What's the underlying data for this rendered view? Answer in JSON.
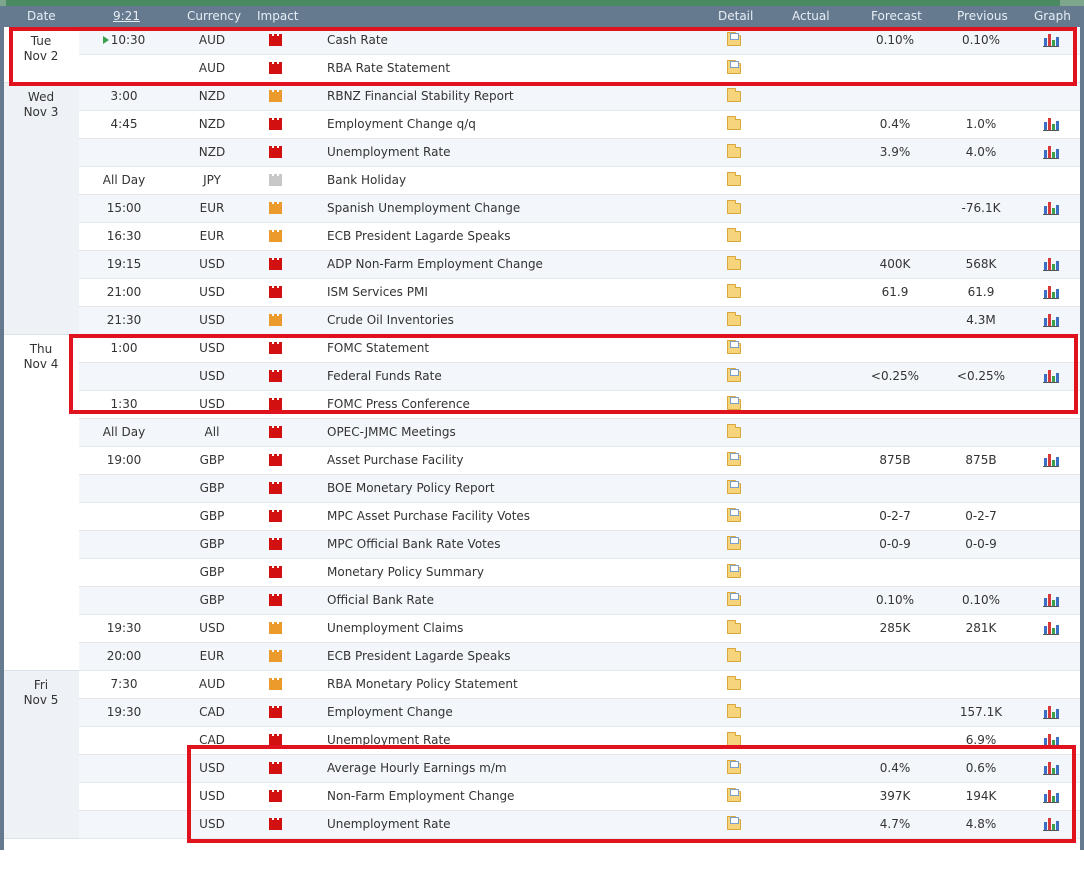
{
  "header": {
    "date": "Date",
    "time": "9:21",
    "currency": "Currency",
    "impact": "Impact",
    "detail": "Detail",
    "actual": "Actual",
    "forecast": "Forecast",
    "previous": "Previous",
    "graph": "Graph"
  },
  "days": [
    {
      "day": "Tue",
      "date": "Nov 2",
      "start": 0,
      "count": 2
    },
    {
      "day": "Wed",
      "date": "Nov 3",
      "start": 2,
      "count": 9
    },
    {
      "day": "Thu",
      "date": "Nov 4",
      "start": 11,
      "count": 12
    },
    {
      "day": "Fri",
      "date": "Nov 5",
      "start": 23,
      "count": 6
    }
  ],
  "rows": [
    {
      "time": "10:30",
      "upnext": true,
      "currency": "AUD",
      "impact": "high",
      "event": "Cash Rate",
      "detail": "doc",
      "actual": "",
      "forecast": "0.10%",
      "previous": "0.10%",
      "graph": true
    },
    {
      "time": "",
      "currency": "AUD",
      "impact": "high",
      "event": "RBA Rate Statement",
      "detail": "doc",
      "actual": "",
      "forecast": "",
      "previous": "",
      "graph": false
    },
    {
      "time": "3:00",
      "currency": "NZD",
      "impact": "med",
      "event": "RBNZ Financial Stability Report",
      "detail": "folder",
      "actual": "",
      "forecast": "",
      "previous": "",
      "graph": false
    },
    {
      "time": "4:45",
      "currency": "NZD",
      "impact": "high",
      "event": "Employment Change q/q",
      "detail": "folder",
      "actual": "",
      "forecast": "0.4%",
      "previous": "1.0%",
      "graph": true
    },
    {
      "time": "",
      "currency": "NZD",
      "impact": "high",
      "event": "Unemployment Rate",
      "detail": "folder",
      "actual": "",
      "forecast": "3.9%",
      "previous": "4.0%",
      "graph": true
    },
    {
      "time": "All Day",
      "currency": "JPY",
      "impact": "none",
      "event": "Bank Holiday",
      "detail": "folder",
      "actual": "",
      "forecast": "",
      "previous": "",
      "graph": false
    },
    {
      "time": "15:00",
      "currency": "EUR",
      "impact": "med",
      "event": "Spanish Unemployment Change",
      "detail": "folder",
      "actual": "",
      "forecast": "",
      "previous": "-76.1K",
      "graph": true
    },
    {
      "time": "16:30",
      "currency": "EUR",
      "impact": "med",
      "event": "ECB President Lagarde Speaks",
      "detail": "folder",
      "actual": "",
      "forecast": "",
      "previous": "",
      "graph": false
    },
    {
      "time": "19:15",
      "currency": "USD",
      "impact": "high",
      "event": "ADP Non-Farm Employment Change",
      "detail": "folder",
      "actual": "",
      "forecast": "400K",
      "previous": "568K",
      "graph": true
    },
    {
      "time": "21:00",
      "currency": "USD",
      "impact": "high",
      "event": "ISM Services PMI",
      "detail": "folder",
      "actual": "",
      "forecast": "61.9",
      "previous": "61.9",
      "graph": true
    },
    {
      "time": "21:30",
      "currency": "USD",
      "impact": "med",
      "event": "Crude Oil Inventories",
      "detail": "folder",
      "actual": "",
      "forecast": "",
      "previous": "4.3M",
      "graph": true
    },
    {
      "time": "1:00",
      "currency": "USD",
      "impact": "high",
      "event": "FOMC Statement",
      "detail": "doc",
      "actual": "",
      "forecast": "",
      "previous": "",
      "graph": false
    },
    {
      "time": "",
      "currency": "USD",
      "impact": "high",
      "event": "Federal Funds Rate",
      "detail": "doc",
      "actual": "",
      "forecast": "<0.25%",
      "previous": "<0.25%",
      "graph": true
    },
    {
      "time": "1:30",
      "currency": "USD",
      "impact": "high",
      "event": "FOMC Press Conference",
      "detail": "doc",
      "actual": "",
      "forecast": "",
      "previous": "",
      "graph": false
    },
    {
      "time": "All Day",
      "currency": "All",
      "impact": "high",
      "event": "OPEC-JMMC Meetings",
      "detail": "folder",
      "actual": "",
      "forecast": "",
      "previous": "",
      "graph": false
    },
    {
      "time": "19:00",
      "currency": "GBP",
      "impact": "high",
      "event": "Asset Purchase Facility",
      "detail": "doc",
      "actual": "",
      "forecast": "875B",
      "previous": "875B",
      "graph": true
    },
    {
      "time": "",
      "currency": "GBP",
      "impact": "high",
      "event": "BOE Monetary Policy Report",
      "detail": "doc",
      "actual": "",
      "forecast": "",
      "previous": "",
      "graph": false
    },
    {
      "time": "",
      "currency": "GBP",
      "impact": "high",
      "event": "MPC Asset Purchase Facility Votes",
      "detail": "doc",
      "actual": "",
      "forecast": "0-2-7",
      "previous": "0-2-7",
      "graph": false
    },
    {
      "time": "",
      "currency": "GBP",
      "impact": "high",
      "event": "MPC Official Bank Rate Votes",
      "detail": "doc",
      "actual": "",
      "forecast": "0-0-9",
      "previous": "0-0-9",
      "graph": false
    },
    {
      "time": "",
      "currency": "GBP",
      "impact": "high",
      "event": "Monetary Policy Summary",
      "detail": "doc",
      "actual": "",
      "forecast": "",
      "previous": "",
      "graph": false
    },
    {
      "time": "",
      "currency": "GBP",
      "impact": "high",
      "event": "Official Bank Rate",
      "detail": "doc",
      "actual": "",
      "forecast": "0.10%",
      "previous": "0.10%",
      "graph": true
    },
    {
      "time": "19:30",
      "currency": "USD",
      "impact": "med",
      "event": "Unemployment Claims",
      "detail": "folder",
      "actual": "",
      "forecast": "285K",
      "previous": "281K",
      "graph": true
    },
    {
      "time": "20:00",
      "currency": "EUR",
      "impact": "med",
      "event": "ECB President Lagarde Speaks",
      "detail": "folder",
      "actual": "",
      "forecast": "",
      "previous": "",
      "graph": false
    },
    {
      "time": "7:30",
      "currency": "AUD",
      "impact": "med",
      "event": "RBA Monetary Policy Statement",
      "detail": "folder",
      "actual": "",
      "forecast": "",
      "previous": "",
      "graph": false
    },
    {
      "time": "19:30",
      "currency": "CAD",
      "impact": "high",
      "event": "Employment Change",
      "detail": "folder",
      "actual": "",
      "forecast": "",
      "previous": "157.1K",
      "graph": true
    },
    {
      "time": "",
      "currency": "CAD",
      "impact": "high",
      "event": "Unemployment Rate",
      "detail": "folder",
      "actual": "",
      "forecast": "",
      "previous": "6.9%",
      "graph": true
    },
    {
      "time": "",
      "currency": "USD",
      "impact": "high",
      "event": "Average Hourly Earnings m/m",
      "detail": "doc",
      "actual": "",
      "forecast": "0.4%",
      "previous": "0.6%",
      "graph": true
    },
    {
      "time": "",
      "currency": "USD",
      "impact": "high",
      "event": "Non-Farm Employment Change",
      "detail": "doc",
      "actual": "",
      "forecast": "397K",
      "previous": "194K",
      "graph": true
    },
    {
      "time": "",
      "currency": "USD",
      "impact": "high",
      "event": "Unemployment Rate",
      "detail": "doc",
      "actual": "",
      "forecast": "4.7%",
      "previous": "4.8%",
      "graph": true
    }
  ],
  "colors": {
    "header_bg": "#65798f",
    "highlight": "#e0121e",
    "impact_high": "#d31010",
    "impact_medium": "#eb9a2c",
    "impact_none": "#c8c8c8"
  }
}
